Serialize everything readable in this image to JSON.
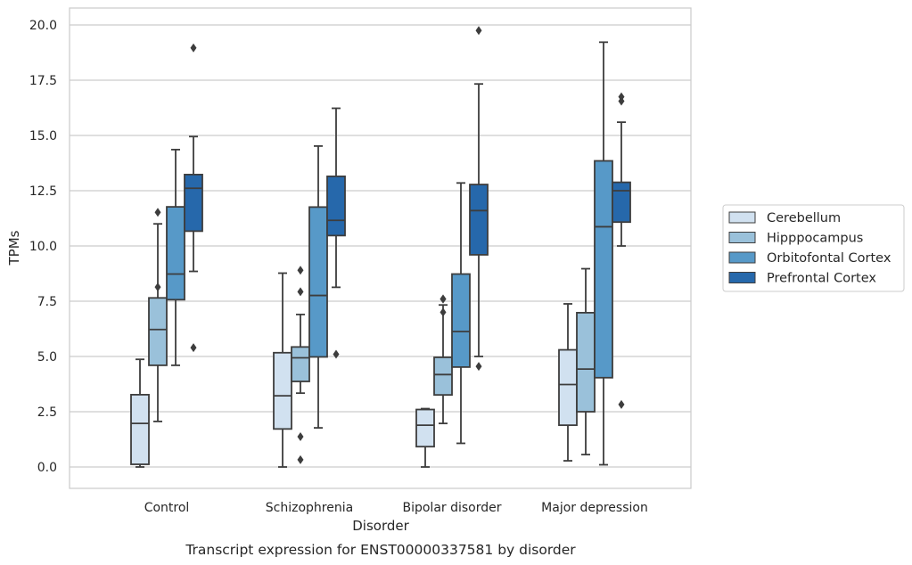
{
  "chart_data": {
    "type": "box",
    "caption": "Transcript expression for ENST00000337581 by disorder",
    "xlabel": "Disorder",
    "ylabel": "TPMs",
    "ylim": [
      -0.95,
      20.75
    ],
    "yticks": [
      "0.0",
      "2.5",
      "5.0",
      "7.5",
      "10.0",
      "12.5",
      "15.0",
      "17.5",
      "20.0"
    ],
    "categories": [
      "Control",
      "Schizophrenia",
      "Bipolar disorder",
      "Major depression"
    ],
    "grid": "horizontal",
    "legend_position": "right",
    "series": [
      {
        "name": "Cerebellum",
        "color": "#d1e1f0",
        "boxes": [
          {
            "whisker_low": 0.0,
            "q1": 0.12,
            "median": 1.97,
            "q3": 3.27,
            "whisker_high": 4.87,
            "outliers": []
          },
          {
            "whisker_low": 0.0,
            "q1": 1.72,
            "median": 3.22,
            "q3": 5.17,
            "whisker_high": 8.77,
            "outliers": []
          },
          {
            "whisker_low": 0.0,
            "q1": 0.92,
            "median": 1.89,
            "q3": 2.6,
            "whisker_high": 2.64,
            "outliers": []
          },
          {
            "whisker_low": 0.28,
            "q1": 1.89,
            "median": 3.73,
            "q3": 5.3,
            "whisker_high": 7.38,
            "outliers": []
          }
        ]
      },
      {
        "name": "Hipppocampus",
        "color": "#9ac1da",
        "boxes": [
          {
            "whisker_low": 2.06,
            "q1": 4.6,
            "median": 6.22,
            "q3": 7.65,
            "whisker_high": 11.0,
            "outliers": [
              8.14,
              11.52
            ]
          },
          {
            "whisker_low": 3.34,
            "q1": 3.87,
            "median": 4.94,
            "q3": 5.43,
            "whisker_high": 6.9,
            "outliers": [
              7.93,
              8.9,
              1.37,
              0.33
            ]
          },
          {
            "whisker_low": 1.97,
            "q1": 3.26,
            "median": 4.18,
            "q3": 4.96,
            "whisker_high": 7.33,
            "outliers": [
              7.6,
              7.0,
              7.6
            ]
          },
          {
            "whisker_low": 0.56,
            "q1": 2.5,
            "median": 4.43,
            "q3": 6.98,
            "whisker_high": 8.97,
            "outliers": []
          }
        ]
      },
      {
        "name": "Orbitofontal Cortex",
        "color": "#5799c8",
        "boxes": [
          {
            "whisker_low": 4.6,
            "q1": 7.57,
            "median": 8.73,
            "q3": 11.77,
            "whisker_high": 14.36,
            "outliers": []
          },
          {
            "whisker_low": 1.77,
            "q1": 4.98,
            "median": 7.76,
            "q3": 11.76,
            "whisker_high": 14.52,
            "outliers": []
          },
          {
            "whisker_low": 1.07,
            "q1": 4.52,
            "median": 6.13,
            "q3": 8.73,
            "whisker_high": 12.85,
            "outliers": []
          },
          {
            "whisker_low": 0.1,
            "q1": 4.04,
            "median": 10.87,
            "q3": 13.85,
            "whisker_high": 19.22,
            "outliers": []
          }
        ]
      },
      {
        "name": "Prefrontal Cortex",
        "color": "#2668ab",
        "boxes": [
          {
            "whisker_low": 8.85,
            "q1": 10.67,
            "median": 12.61,
            "q3": 13.23,
            "whisker_high": 14.95,
            "outliers": [
              5.4,
              18.96
            ]
          },
          {
            "whisker_low": 8.13,
            "q1": 10.47,
            "median": 11.16,
            "q3": 13.15,
            "whisker_high": 16.23,
            "outliers": [
              5.1
            ]
          },
          {
            "whisker_low": 5.0,
            "q1": 9.6,
            "median": 11.6,
            "q3": 12.78,
            "whisker_high": 17.33,
            "outliers": [
              4.55,
              19.75
            ]
          },
          {
            "whisker_low": 10.0,
            "q1": 11.08,
            "median": 12.5,
            "q3": 12.88,
            "whisker_high": 15.6,
            "outliers": [
              2.83,
              16.55,
              16.75
            ]
          }
        ]
      }
    ]
  }
}
